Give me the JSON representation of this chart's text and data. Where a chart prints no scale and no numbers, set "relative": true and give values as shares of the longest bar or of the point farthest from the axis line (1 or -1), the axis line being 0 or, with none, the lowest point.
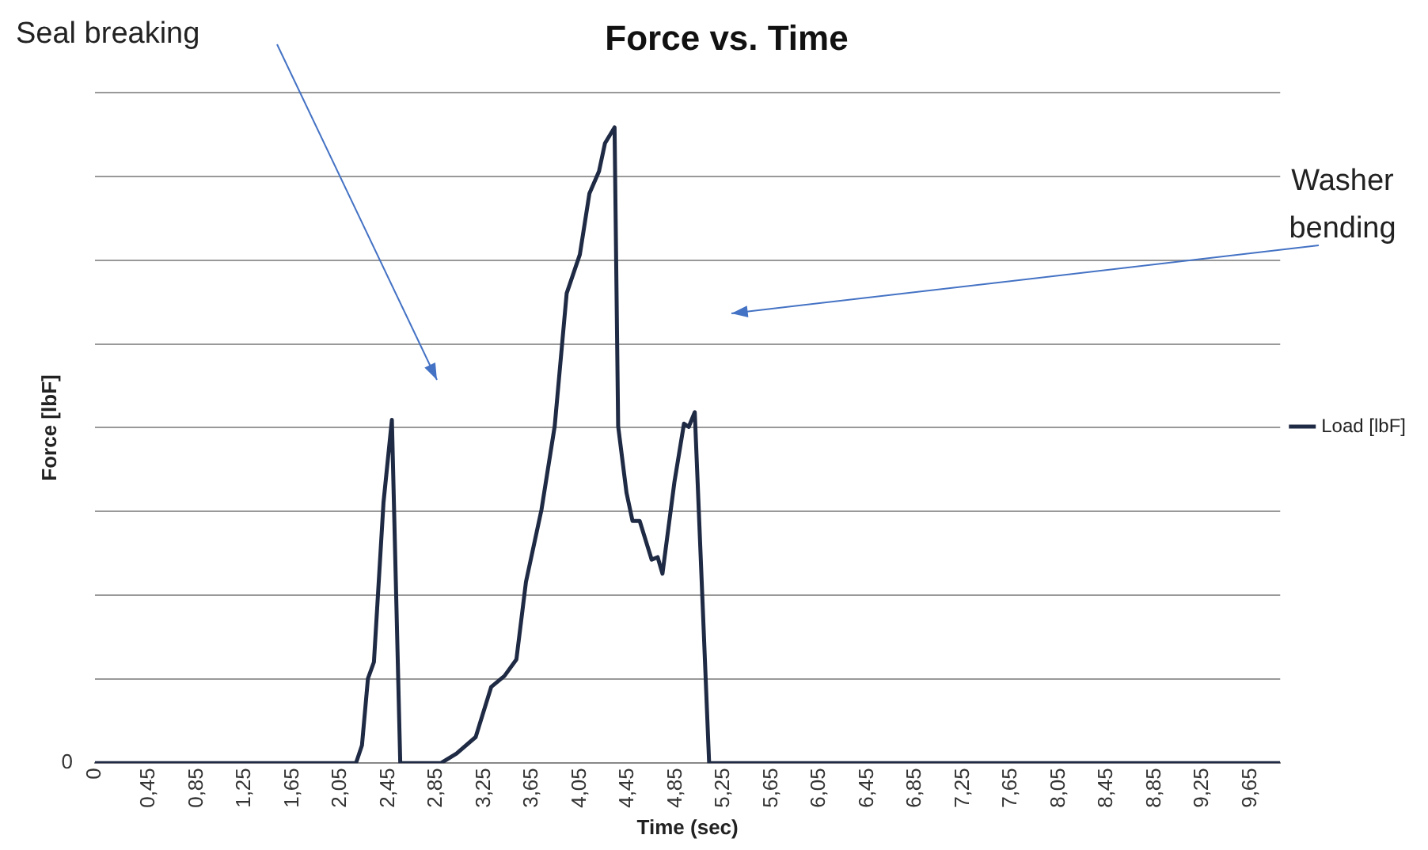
{
  "chart_data": {
    "type": "line",
    "title": "Force vs. Time",
    "xlabel": "Time (sec)",
    "ylabel": "Force [lbF]",
    "relative": true,
    "grid": "y",
    "legend": "right",
    "marker": "none",
    "line_style": "solid",
    "xlim": [
      0,
      9.9
    ],
    "xticks": [
      {
        "value": 0,
        "label": "0"
      },
      {
        "value": 0.45,
        "label": "0,45"
      },
      {
        "value": 0.85,
        "label": "0,85"
      },
      {
        "value": 1.25,
        "label": "1,25"
      },
      {
        "value": 1.65,
        "label": "1,65"
      },
      {
        "value": 2.05,
        "label": "2,05"
      },
      {
        "value": 2.45,
        "label": "2,45"
      },
      {
        "value": 2.85,
        "label": "2,85"
      },
      {
        "value": 3.25,
        "label": "3,25"
      },
      {
        "value": 3.65,
        "label": "3,65"
      },
      {
        "value": 4.05,
        "label": "4,05"
      },
      {
        "value": 4.45,
        "label": "4,45"
      },
      {
        "value": 4.85,
        "label": "4,85"
      },
      {
        "value": 5.25,
        "label": "5,25"
      },
      {
        "value": 5.65,
        "label": "5,65"
      },
      {
        "value": 6.05,
        "label": "6,05"
      },
      {
        "value": 6.45,
        "label": "6,45"
      },
      {
        "value": 6.85,
        "label": "6,85"
      },
      {
        "value": 7.25,
        "label": "7,25"
      },
      {
        "value": 7.65,
        "label": "7,65"
      },
      {
        "value": 8.05,
        "label": "8,05"
      },
      {
        "value": 8.45,
        "label": "8,45"
      },
      {
        "value": 8.85,
        "label": "8,85"
      },
      {
        "value": 9.25,
        "label": "9,25"
      },
      {
        "value": 9.65,
        "label": "9,65"
      }
    ],
    "x": [
      0,
      2.18,
      2.23,
      2.28,
      2.33,
      2.41,
      2.48,
      2.55,
      2.89,
      3.02,
      3.18,
      3.31,
      3.42,
      3.52,
      3.6,
      3.73,
      3.84,
      3.94,
      4.05,
      4.13,
      4.21,
      4.26,
      4.34,
      4.37,
      4.44,
      4.49,
      4.55,
      4.65,
      4.7,
      4.74,
      4.84,
      4.92,
      4.96,
      5.01,
      5.13,
      9.9
    ],
    "series": [
      {
        "name": "Load [lbF]",
        "color": "#1f2a44",
        "values": [
          0,
          0,
          0.028,
          0.133,
          0.159,
          0.41,
          0.54,
          0,
          0,
          0.015,
          0.041,
          0.12,
          0.137,
          0.163,
          0.285,
          0.399,
          0.53,
          0.739,
          0.8,
          0.896,
          0.931,
          0.975,
          1,
          0.53,
          0.425,
          0.381,
          0.381,
          0.32,
          0.324,
          0.298,
          0.442,
          0.534,
          0.529,
          0.552,
          0,
          0
        ]
      }
    ],
    "annotations": [
      "Seal breaking",
      "Washer bending",
      "0"
    ]
  }
}
